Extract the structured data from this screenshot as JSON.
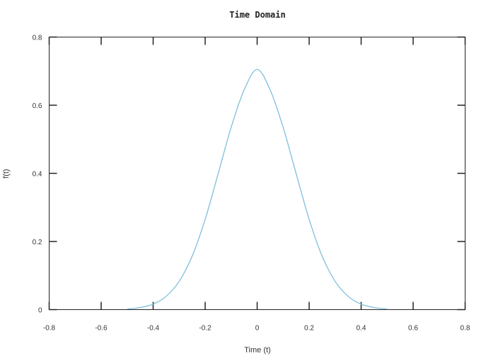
{
  "chart_data": {
    "type": "line",
    "title": "Time Domain",
    "xlabel": "Time (t)",
    "ylabel": "f(t)",
    "xlim": [
      -0.8,
      0.8
    ],
    "ylim": [
      0,
      0.8
    ],
    "xticks": [
      "-0.8",
      "-0.6",
      "-0.4",
      "-0.2",
      "0",
      "0.2",
      "0.4",
      "0.6",
      "0.8"
    ],
    "yticks": [
      "0",
      "0.2",
      "0.4",
      "0.6",
      "0.8"
    ],
    "grid": false,
    "series": [
      {
        "color": "#7fbfdc",
        "x": [
          -0.5,
          -0.45,
          -0.4,
          -0.35,
          -0.3,
          -0.25,
          -0.2,
          -0.15,
          -0.1,
          -0.05,
          0,
          0.05,
          0.1,
          0.15,
          0.2,
          0.25,
          0.3,
          0.35,
          0.4,
          0.45,
          0.5
        ],
        "y": [
          0.002,
          0.006,
          0.016,
          0.039,
          0.083,
          0.157,
          0.265,
          0.399,
          0.535,
          0.645,
          0.705,
          0.645,
          0.535,
          0.399,
          0.265,
          0.157,
          0.083,
          0.039,
          0.016,
          0.006,
          0.002
        ]
      }
    ]
  }
}
